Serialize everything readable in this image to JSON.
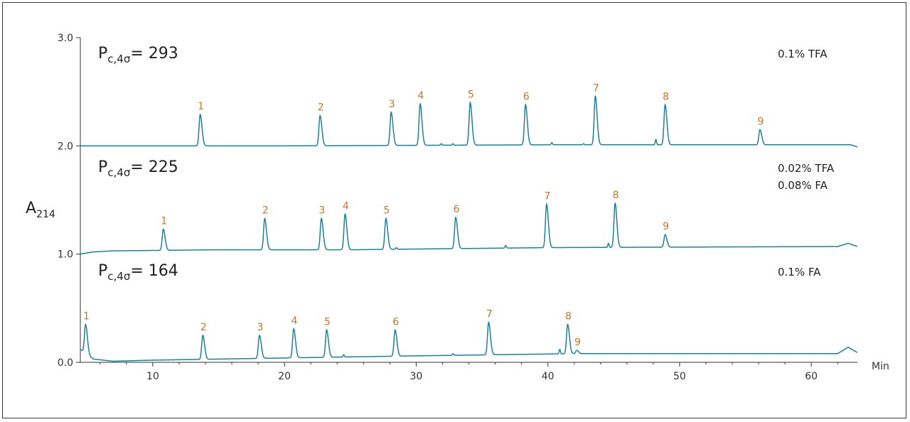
{
  "chart_data": {
    "type": "line",
    "title": "",
    "xlabel": "Min",
    "ylabel_main": "A",
    "ylabel_sub": "214",
    "xlim": [
      4.5,
      63.5
    ],
    "ylim": [
      0.0,
      3.0
    ],
    "x_ticks": [
      {
        "value": 10,
        "label": "10"
      },
      {
        "value": 20,
        "label": "20"
      },
      {
        "value": 30,
        "label": "30"
      },
      {
        "value": 40,
        "label": "40"
      },
      {
        "value": 50,
        "label": "50"
      },
      {
        "value": 60,
        "label": "60"
      }
    ],
    "y_ticks": [
      {
        "value": 0.0,
        "label": "0.0"
      },
      {
        "value": 1.0,
        "label": "1.0"
      },
      {
        "value": 2.0,
        "label": "2.0"
      },
      {
        "value": 3.0,
        "label": "3.0"
      }
    ],
    "line_color": "#1f7f9a",
    "label_color": "#c0772a",
    "series": [
      {
        "conditions": [
          "0.1% TFA"
        ],
        "annotation": {
          "prefix": "P",
          "sub": "c,4σ",
          "equals": "= 293"
        },
        "baseline": [
          [
            4.5,
            2.0
          ],
          [
            20,
            2.0
          ],
          [
            40,
            2.01
          ],
          [
            63,
            2.01
          ],
          [
            63.5,
            1.99
          ]
        ],
        "peaks": [
          {
            "label": "1",
            "x": 13.6,
            "y": 2.29
          },
          {
            "label": "2",
            "x": 22.7,
            "y": 2.28
          },
          {
            "label": "3",
            "x": 28.1,
            "y": 2.31
          },
          {
            "label": "4",
            "x": 30.3,
            "y": 2.39
          },
          {
            "label": "5",
            "x": 34.1,
            "y": 2.4
          },
          {
            "label": "6",
            "x": 38.3,
            "y": 2.38
          },
          {
            "label": "7",
            "x": 43.6,
            "y": 2.46
          },
          {
            "label": "8",
            "x": 48.9,
            "y": 2.38
          },
          {
            "label": "9",
            "x": 56.1,
            "y": 2.15
          }
        ],
        "minor_peaks": [
          {
            "x": 31.9,
            "y": 2.02
          },
          {
            "x": 32.8,
            "y": 2.02
          },
          {
            "x": 40.3,
            "y": 2.03
          },
          {
            "x": 42.7,
            "y": 2.02
          },
          {
            "x": 48.2,
            "y": 2.06
          }
        ]
      },
      {
        "conditions": [
          "0.02% TFA",
          "0.08% FA"
        ],
        "annotation": {
          "prefix": "P",
          "sub": "c,4σ",
          "equals": "= 225"
        },
        "baseline": [
          [
            4.5,
            1.0
          ],
          [
            5.5,
            1.02
          ],
          [
            7,
            1.03
          ],
          [
            15,
            1.04
          ],
          [
            25,
            1.04
          ],
          [
            40,
            1.06
          ],
          [
            62,
            1.07
          ],
          [
            62.8,
            1.1
          ],
          [
            63.5,
            1.07
          ]
        ],
        "peaks": [
          {
            "label": "1",
            "x": 10.8,
            "y": 1.23
          },
          {
            "label": "2",
            "x": 18.5,
            "y": 1.33
          },
          {
            "label": "3",
            "x": 22.8,
            "y": 1.33
          },
          {
            "label": "4",
            "x": 24.6,
            "y": 1.37
          },
          {
            "label": "5",
            "x": 27.7,
            "y": 1.33
          },
          {
            "label": "6",
            "x": 33.0,
            "y": 1.34
          },
          {
            "label": "7",
            "x": 39.9,
            "y": 1.46
          },
          {
            "label": "8",
            "x": 45.1,
            "y": 1.47
          },
          {
            "label": "9",
            "x": 48.9,
            "y": 1.18
          }
        ],
        "minor_peaks": [
          {
            "x": 28.5,
            "y": 1.06
          },
          {
            "x": 36.8,
            "y": 1.08
          },
          {
            "x": 44.6,
            "y": 1.1
          }
        ]
      },
      {
        "conditions": [
          "0.1% FA"
        ],
        "annotation": {
          "prefix": "P",
          "sub": "c,4σ",
          "equals": "= 164"
        },
        "baseline": [
          [
            4.5,
            0.12
          ],
          [
            5.5,
            0.03
          ],
          [
            7,
            0.01
          ],
          [
            10,
            0.02
          ],
          [
            20,
            0.04
          ],
          [
            30,
            0.06
          ],
          [
            42,
            0.08
          ],
          [
            62,
            0.08
          ],
          [
            62.8,
            0.14
          ],
          [
            63.5,
            0.09
          ]
        ],
        "peaks": [
          {
            "label": "1",
            "x": 4.9,
            "y": 0.35
          },
          {
            "label": "2",
            "x": 13.8,
            "y": 0.25
          },
          {
            "label": "3",
            "x": 18.1,
            "y": 0.25
          },
          {
            "label": "4",
            "x": 20.7,
            "y": 0.31
          },
          {
            "label": "5",
            "x": 23.2,
            "y": 0.3
          },
          {
            "label": "6",
            "x": 28.4,
            "y": 0.3
          },
          {
            "label": "7",
            "x": 35.5,
            "y": 0.37
          },
          {
            "label": "8",
            "x": 41.5,
            "y": 0.35
          },
          {
            "label": "9",
            "x": 42.2,
            "y": 0.11
          }
        ],
        "minor_peaks": [
          {
            "x": 24.5,
            "y": 0.07
          },
          {
            "x": 32.8,
            "y": 0.08
          },
          {
            "x": 40.9,
            "y": 0.12
          }
        ]
      }
    ]
  }
}
